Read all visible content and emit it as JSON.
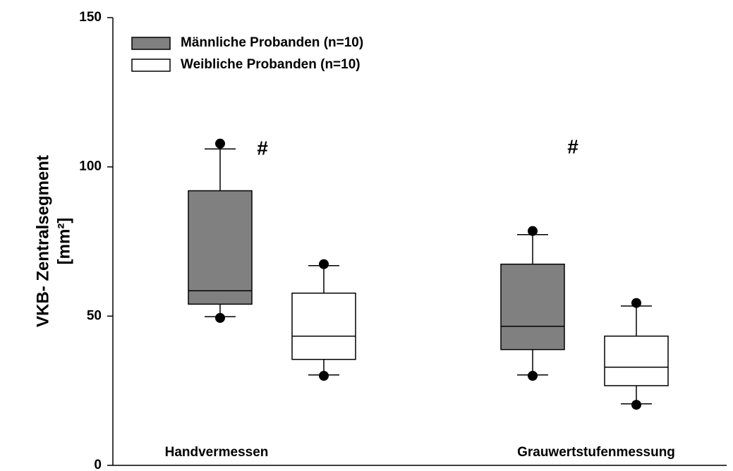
{
  "chart_data": {
    "type": "box",
    "ylabel": [
      "VKB- Zentralsegment",
      "[mm²]"
    ],
    "categories": [
      "Handvermessen",
      "Grauwertstufenmessung"
    ],
    "series": [
      {
        "name": "Männliche Probanden (n=10)",
        "color": "#808080",
        "values": [
          {
            "min": 49.8,
            "q1": 54,
            "median": 58.5,
            "q3": 92,
            "max": 106,
            "outliers": [
              107.8,
              49.4
            ]
          },
          {
            "min": 30.3,
            "q1": 38.8,
            "median": 46.6,
            "q3": 67.4,
            "max": 77.3,
            "outliers": [
              78.5,
              30
            ]
          }
        ]
      },
      {
        "name": "Weibliche Probanden (n=10)",
        "color": "#ffffff",
        "values": [
          {
            "min": 30.3,
            "q1": 35.5,
            "median": 43.3,
            "q3": 57.7,
            "max": 66.9,
            "outliers": [
              67.4,
              30
            ]
          },
          {
            "min": 20.6,
            "q1": 26.7,
            "median": 32.9,
            "q3": 43.3,
            "max": 53.4,
            "outliers": [
              54.4,
              20.3
            ]
          }
        ]
      }
    ],
    "annotations": [
      "#",
      "#"
    ],
    "ylim": [
      0,
      150
    ],
    "yticks": [
      0,
      50,
      100,
      150
    ]
  }
}
